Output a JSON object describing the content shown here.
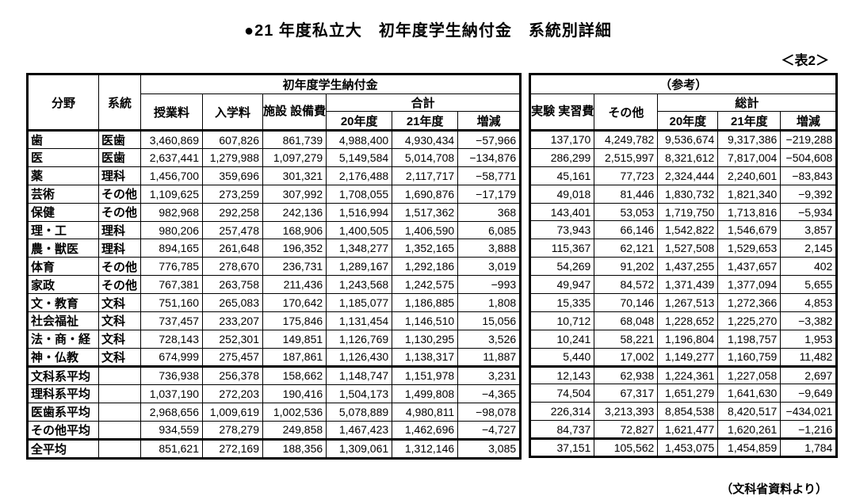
{
  "page": {
    "title": "●21 年度私立大　初年度学生納付金　系統別詳細",
    "table_tag": "＜表2＞",
    "source_note": "（文科省資料より）"
  },
  "left_header": {
    "field": "分野",
    "system": "系統",
    "group": "初年度学生納付金",
    "tuition": "授業料",
    "admission": "入学料",
    "facility": "施設\n設備費",
    "total": "合計",
    "y20": "20年度",
    "y21": "21年度",
    "change": "増減"
  },
  "right_header": {
    "group": "（参考）",
    "experiment": "実験\n実習費",
    "other": "その他",
    "grand_total": "総計",
    "y20": "20年度",
    "y21": "21年度",
    "change": "増減"
  },
  "chart_data": {
    "type": "table",
    "title": "21年度私立大 初年度学生納付金 系統別詳細",
    "left_columns": [
      "分野",
      "系統",
      "授業料",
      "入学料",
      "施設設備費",
      "合計 20年度",
      "合計 21年度",
      "合計 増減"
    ],
    "right_columns": [
      "実験実習費",
      "その他",
      "総計 20年度",
      "総計 21年度",
      "総計 増減"
    ],
    "sections": {
      "fields": [
        {
          "field": "歯",
          "system": "医歯",
          "values": [
            "3,460,869",
            "607,826",
            "861,739",
            "4,988,400",
            "4,930,434",
            "−57,966"
          ],
          "reference": [
            "137,170",
            "4,249,782",
            "9,536,674",
            "9,317,386",
            "−219,288"
          ]
        },
        {
          "field": "医",
          "system": "医歯",
          "values": [
            "2,637,441",
            "1,279,988",
            "1,097,279",
            "5,149,584",
            "5,014,708",
            "−134,876"
          ],
          "reference": [
            "286,299",
            "2,515,997",
            "8,321,612",
            "7,817,004",
            "−504,608"
          ]
        },
        {
          "field": "薬",
          "system": "理科",
          "values": [
            "1,456,700",
            "359,696",
            "301,321",
            "2,176,488",
            "2,117,717",
            "−58,771"
          ],
          "reference": [
            "45,161",
            "77,723",
            "2,324,444",
            "2,240,601",
            "−83,843"
          ]
        },
        {
          "field": "芸術",
          "system": "その他",
          "values": [
            "1,109,625",
            "273,259",
            "307,992",
            "1,708,055",
            "1,690,876",
            "−17,179"
          ],
          "reference": [
            "49,018",
            "81,446",
            "1,830,732",
            "1,821,340",
            "−9,392"
          ]
        },
        {
          "field": "保健",
          "system": "その他",
          "values": [
            "982,968",
            "292,258",
            "242,136",
            "1,516,994",
            "1,517,362",
            "368"
          ],
          "reference": [
            "143,401",
            "53,053",
            "1,719,750",
            "1,713,816",
            "−5,934"
          ]
        },
        {
          "field": "理・工",
          "system": "理科",
          "values": [
            "980,206",
            "257,478",
            "168,906",
            "1,400,505",
            "1,406,590",
            "6,085"
          ],
          "reference": [
            "73,943",
            "66,146",
            "1,542,822",
            "1,546,679",
            "3,857"
          ]
        },
        {
          "field": "農・獣医",
          "system": "理科",
          "values": [
            "894,165",
            "261,648",
            "196,352",
            "1,348,277",
            "1,352,165",
            "3,888"
          ],
          "reference": [
            "115,367",
            "62,121",
            "1,527,508",
            "1,529,653",
            "2,145"
          ]
        },
        {
          "field": "体育",
          "system": "その他",
          "values": [
            "776,785",
            "278,670",
            "236,731",
            "1,289,167",
            "1,292,186",
            "3,019"
          ],
          "reference": [
            "54,269",
            "91,202",
            "1,437,255",
            "1,437,657",
            "402"
          ]
        },
        {
          "field": "家政",
          "system": "その他",
          "values": [
            "767,381",
            "263,758",
            "211,436",
            "1,243,568",
            "1,242,575",
            "−993"
          ],
          "reference": [
            "49,947",
            "84,572",
            "1,371,439",
            "1,377,094",
            "5,655"
          ]
        },
        {
          "field": "文・教育",
          "system": "文科",
          "values": [
            "751,160",
            "265,083",
            "170,642",
            "1,185,077",
            "1,186,885",
            "1,808"
          ],
          "reference": [
            "15,335",
            "70,146",
            "1,267,513",
            "1,272,366",
            "4,853"
          ]
        },
        {
          "field": "社会福祉",
          "system": "文科",
          "values": [
            "737,457",
            "233,207",
            "175,846",
            "1,131,454",
            "1,146,510",
            "15,056"
          ],
          "reference": [
            "10,712",
            "68,048",
            "1,228,652",
            "1,225,270",
            "−3,382"
          ]
        },
        {
          "field": "法・商・経",
          "system": "文科",
          "values": [
            "728,143",
            "252,301",
            "149,851",
            "1,126,769",
            "1,130,295",
            "3,526"
          ],
          "reference": [
            "10,241",
            "58,221",
            "1,196,804",
            "1,198,757",
            "1,953"
          ]
        },
        {
          "field": "神・仏教",
          "system": "文科",
          "values": [
            "674,999",
            "275,457",
            "187,861",
            "1,126,430",
            "1,138,317",
            "11,887"
          ],
          "reference": [
            "5,440",
            "17,002",
            "1,149,277",
            "1,160,759",
            "11,482"
          ]
        }
      ],
      "averages": [
        {
          "field": "文科系平均",
          "system": "",
          "values": [
            "736,938",
            "256,378",
            "158,662",
            "1,148,747",
            "1,151,978",
            "3,231"
          ],
          "reference": [
            "12,143",
            "62,938",
            "1,224,361",
            "1,227,058",
            "2,697"
          ]
        },
        {
          "field": "理科系平均",
          "system": "",
          "values": [
            "1,037,190",
            "272,203",
            "190,416",
            "1,504,173",
            "1,499,808",
            "−4,365"
          ],
          "reference": [
            "74,504",
            "67,317",
            "1,651,279",
            "1,641,630",
            "−9,649"
          ]
        },
        {
          "field": "医歯系平均",
          "system": "",
          "values": [
            "2,968,656",
            "1,009,619",
            "1,002,536",
            "5,078,889",
            "4,980,811",
            "−98,078"
          ],
          "reference": [
            "226,314",
            "3,213,393",
            "8,854,538",
            "8,420,517",
            "−434,021"
          ]
        },
        {
          "field": "その他平均",
          "system": "",
          "values": [
            "934,559",
            "278,279",
            "249,858",
            "1,467,423",
            "1,462,696",
            "−4,727"
          ],
          "reference": [
            "84,737",
            "72,827",
            "1,621,477",
            "1,620,261",
            "−1,216"
          ]
        }
      ],
      "overall": {
        "field": "全平均",
        "system": "",
        "values": [
          "851,621",
          "272,169",
          "188,356",
          "1,309,061",
          "1,312,146",
          "3,085"
        ],
        "reference": [
          "37,151",
          "105,562",
          "1,453,075",
          "1,454,859",
          "1,784"
        ]
      }
    }
  }
}
